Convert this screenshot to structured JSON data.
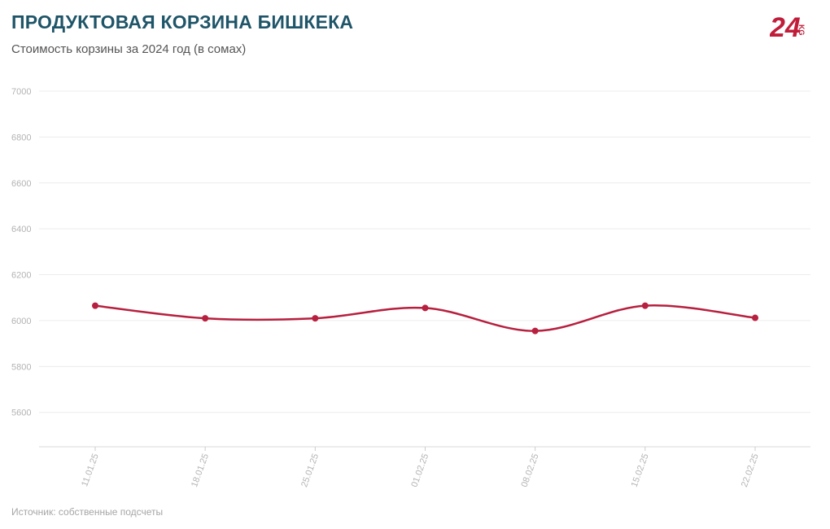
{
  "header": {
    "title": "ПРОДУКТОВАЯ КОРЗИНА БИШКЕКА",
    "subtitle": "Стоимость корзины за 2024 год (в сомах)"
  },
  "logo": {
    "text": "24",
    "suffix": "KG",
    "color": "#c01d3a"
  },
  "footer": {
    "source": "Источник: собственные подсчеты"
  },
  "chart_data": {
    "type": "line",
    "title": "ПРОДУКТОВАЯ КОРЗИНА БИШКЕКА",
    "subtitle": "Стоимость корзины за 2024 год (в сомах)",
    "xlabel": "",
    "ylabel": "",
    "categories": [
      "11.01.25",
      "18.01.25",
      "25.01.25",
      "01.02.25",
      "08.02.25",
      "15.02.25",
      "22.02.25"
    ],
    "series": [
      {
        "values": [
          6065,
          6010,
          6010,
          6055,
          5955,
          6065,
          6012
        ],
        "color": "#b7203f"
      }
    ],
    "yticks": [
      5600,
      5800,
      6000,
      6200,
      6400,
      6600,
      6800,
      7000
    ],
    "ylim": [
      5450,
      7000
    ],
    "grid": true,
    "smooth": true,
    "markers": true
  }
}
